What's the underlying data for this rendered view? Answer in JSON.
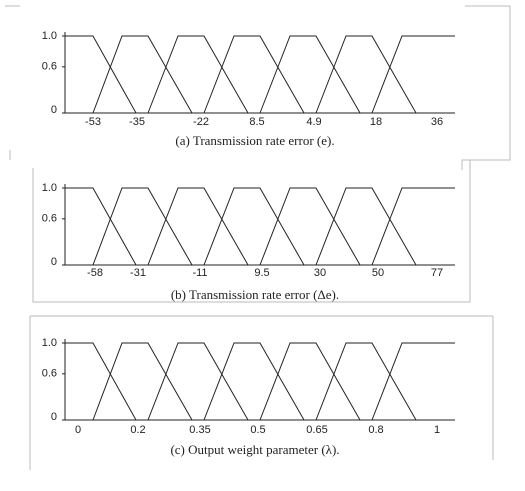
{
  "chart_data": [
    {
      "type": "line",
      "caption": "(a) Transmission rate error (e).",
      "categories": [
        "-53",
        "-35",
        "-22",
        "8.5",
        "4.9",
        "18",
        "36"
      ],
      "ylim": [
        0,
        1
      ],
      "yticks": [
        0,
        0.6,
        {
          "value": 1,
          "label": "1.0"
        }
      ]
    },
    {
      "type": "line",
      "caption": "(b) Transmission rate error (Δe).",
      "categories": [
        "-58",
        "-31",
        "-11",
        "9.5",
        "30",
        "50",
        "77"
      ],
      "ylim": [
        0,
        1
      ],
      "yticks": [
        0,
        0.6,
        {
          "value": 1,
          "label": "1.0"
        }
      ]
    },
    {
      "type": "line",
      "caption": "(c) Output weight parameter (λ).",
      "categories": [
        "0",
        "0.2",
        "0.35",
        "0.5",
        "0.65",
        "0.8",
        "1"
      ],
      "ylim": [
        0,
        1
      ],
      "yticks": [
        0,
        0.6,
        {
          "value": 1,
          "label": "1.0"
        }
      ]
    }
  ]
}
